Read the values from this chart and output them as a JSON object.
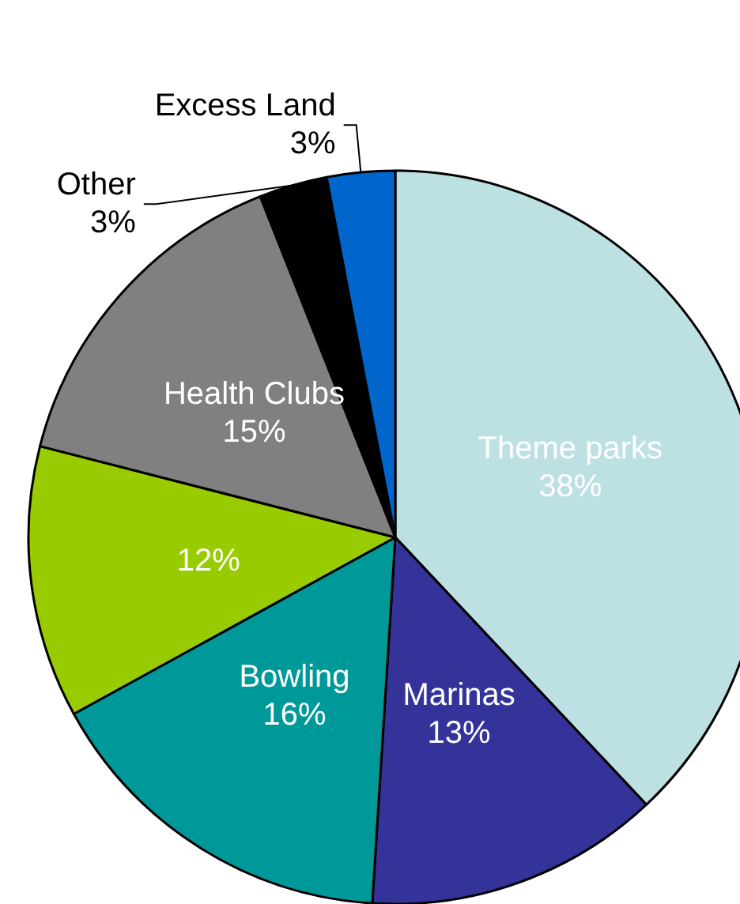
{
  "chart_data": {
    "type": "pie",
    "categories": [
      "Theme parks",
      "Marinas",
      "Bowling",
      null,
      "Health Clubs",
      "Other",
      "Excess Land"
    ],
    "values": [
      38,
      13,
      16,
      12,
      15,
      3,
      3
    ],
    "colors": [
      "#bde0e3",
      "#333399",
      "#009999",
      "#99cc00",
      "#808080",
      "#000000",
      "#0066cc"
    ],
    "value_labels": [
      "38%",
      "13%",
      "16%",
      "12%",
      "15%",
      "3%",
      "3%"
    ]
  }
}
